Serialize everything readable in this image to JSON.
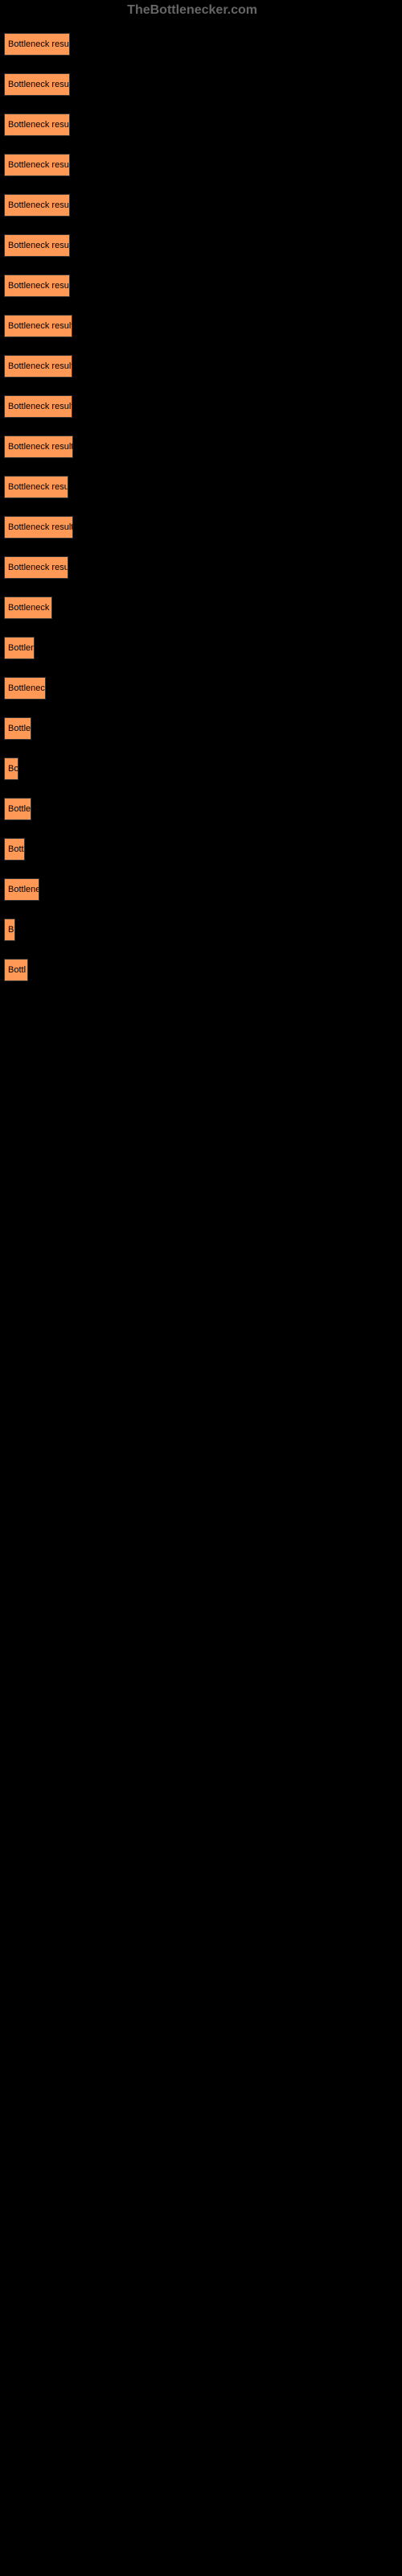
{
  "logo_text": "TheBottlenecker.com",
  "bars": [
    {
      "label": "Bottleneck result",
      "width": 82
    },
    {
      "label": "Bottleneck result",
      "width": 82
    },
    {
      "label": "Bottleneck result",
      "width": 82
    },
    {
      "label": "Bottleneck result",
      "width": 82
    },
    {
      "label": "Bottleneck result",
      "width": 82
    },
    {
      "label": "Bottleneck result",
      "width": 82
    },
    {
      "label": "Bottleneck result",
      "width": 82
    },
    {
      "label": "Bottleneck result",
      "width": 85
    },
    {
      "label": "Bottleneck result",
      "width": 85
    },
    {
      "label": "Bottleneck result",
      "width": 85
    },
    {
      "label": "Bottleneck result",
      "width": 86
    },
    {
      "label": "Bottleneck resul",
      "width": 80
    },
    {
      "label": "Bottleneck result",
      "width": 86
    },
    {
      "label": "Bottleneck resul",
      "width": 80
    },
    {
      "label": "Bottleneck r",
      "width": 60
    },
    {
      "label": "Bottlen",
      "width": 38
    },
    {
      "label": "Bottleneck",
      "width": 52
    },
    {
      "label": "Bottle",
      "width": 34
    },
    {
      "label": "Bo",
      "width": 18
    },
    {
      "label": "Bottle",
      "width": 34
    },
    {
      "label": "Bott",
      "width": 26
    },
    {
      "label": "Bottlene",
      "width": 44
    },
    {
      "label": "B",
      "width": 14
    },
    {
      "label": "Bottl",
      "width": 30
    }
  ],
  "colors": {
    "background": "#000000",
    "bar": "#ff9955",
    "bar_text": "#000000",
    "logo": "#666666"
  }
}
